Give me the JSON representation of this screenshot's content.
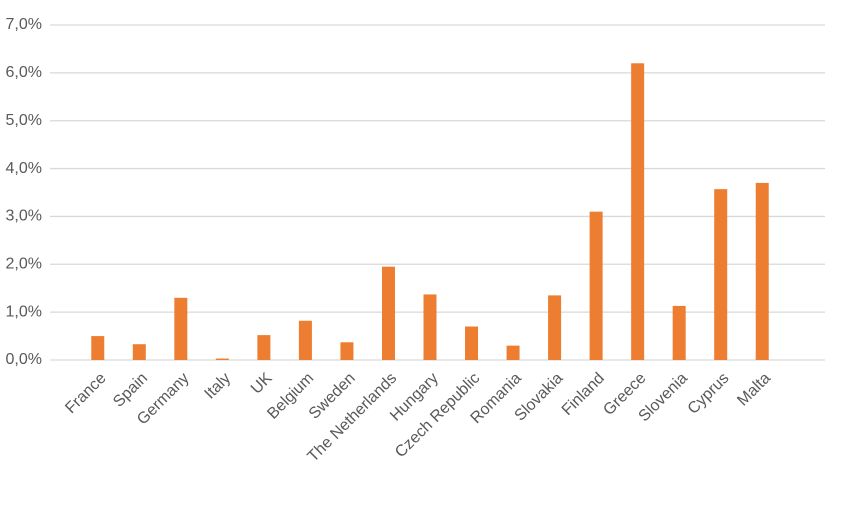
{
  "chart_data": {
    "type": "bar",
    "categories": [
      "France",
      "Spain",
      "Germany",
      "Italy",
      "UK",
      "Belgium",
      "Sweden",
      "The Netherlands",
      "Hungary",
      "Czech Republic",
      "Romania",
      "Slovakia",
      "Finland",
      "Greece",
      "Slovenia",
      "Cyprus",
      "Malta"
    ],
    "values": [
      0.5,
      0.33,
      1.3,
      0.03,
      0.52,
      0.82,
      0.37,
      1.95,
      1.37,
      0.7,
      0.3,
      1.35,
      3.1,
      6.2,
      1.13,
      3.57,
      3.7
    ],
    "color": "#ed7d31",
    "ylim": [
      0,
      7
    ],
    "yticks": [
      {
        "value": 0,
        "label": "0,0%"
      },
      {
        "value": 1,
        "label": "1,0%"
      },
      {
        "value": 2,
        "label": "2,0%"
      },
      {
        "value": 3,
        "label": "3,0%"
      },
      {
        "value": 4,
        "label": "4,0%"
      },
      {
        "value": 5,
        "label": "5,0%"
      },
      {
        "value": 6,
        "label": "6,0%"
      },
      {
        "value": 7,
        "label": "7,0%"
      }
    ],
    "grid": true
  }
}
